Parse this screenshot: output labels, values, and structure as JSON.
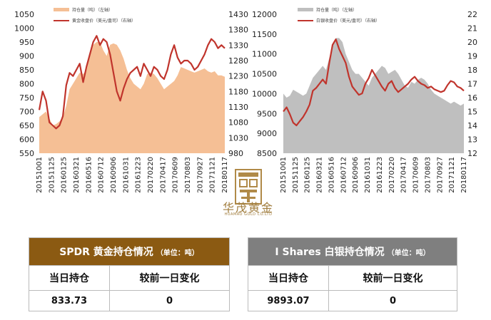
{
  "chart_data": [
    {
      "type": "area+line",
      "legend": [
        "持仓量（吨）（左轴）",
        "黄金收盘价（美元/盎司）（右轴）"
      ],
      "x_ticks": [
        "20151001",
        "20151125",
        "20160125",
        "20160321",
        "20160516",
        "20160712",
        "20160906",
        "20161031",
        "20161223",
        "20170220",
        "20170417",
        "20170609",
        "20170803",
        "20170927",
        "20171121",
        "20180117"
      ],
      "left_axis": {
        "ticks": [
          550,
          600,
          650,
          700,
          750,
          800,
          850,
          900,
          950,
          1000,
          1050
        ],
        "range": [
          550,
          1050
        ]
      },
      "right_axis": {
        "ticks": [
          980,
          1030,
          1080,
          1130,
          1180,
          1230,
          1280,
          1330,
          1380,
          1430
        ],
        "range": [
          980,
          1430
        ]
      },
      "series": [
        {
          "name": "持仓量（吨）（左轴）",
          "axis": "left",
          "color": "#f5bf95",
          "values": [
            680,
            690,
            700,
            675,
            650,
            655,
            665,
            680,
            720,
            780,
            800,
            820,
            840,
            835,
            850,
            900,
            940,
            950,
            950,
            920,
            900,
            940,
            945,
            940,
            920,
            890,
            850,
            820,
            800,
            790,
            780,
            800,
            835,
            840,
            835,
            820,
            800,
            780,
            790,
            800,
            810,
            830,
            860,
            855,
            850,
            845,
            840,
            845,
            850,
            855,
            845,
            840,
            845,
            830,
            830,
            825
          ]
        },
        {
          "name": "黄金收盘价（美元/盎司）（右轴）",
          "axis": "right",
          "color": "#c0342c",
          "values": [
            1120,
            1180,
            1150,
            1080,
            1070,
            1060,
            1070,
            1100,
            1200,
            1240,
            1230,
            1250,
            1270,
            1210,
            1260,
            1300,
            1340,
            1360,
            1330,
            1350,
            1340,
            1300,
            1240,
            1180,
            1150,
            1190,
            1220,
            1240,
            1250,
            1260,
            1230,
            1270,
            1250,
            1230,
            1260,
            1250,
            1230,
            1220,
            1250,
            1300,
            1330,
            1290,
            1270,
            1280,
            1280,
            1270,
            1250,
            1260,
            1280,
            1300,
            1330,
            1350,
            1340,
            1320,
            1330,
            1320
          ]
        }
      ]
    },
    {
      "type": "area+line",
      "legend": [
        "持仓量（吨）（左轴）",
        "白银收盘价（美元/盎司）（右轴）"
      ],
      "x_ticks": [
        "20151001",
        "20151125",
        "20160125",
        "20160321",
        "20160516",
        "20160712",
        "20160906",
        "20161031",
        "20161223",
        "20170220",
        "20170417",
        "20170609",
        "20170803",
        "20170927",
        "20171121",
        "20180117"
      ],
      "left_axis": {
        "ticks": [
          8500,
          9000,
          9500,
          10000,
          10500,
          11000,
          11500,
          12000
        ],
        "range": [
          8500,
          12000
        ]
      },
      "right_axis": {
        "ticks": [
          12,
          13,
          14,
          15,
          16,
          17,
          18,
          19,
          20,
          21,
          22
        ],
        "range": [
          12,
          22
        ]
      },
      "series": [
        {
          "name": "持仓量（吨）（左轴）",
          "axis": "left",
          "color": "#bfbfbf",
          "values": [
            10000,
            9900,
            9950,
            10100,
            10050,
            10000,
            9950,
            10000,
            10200,
            10400,
            10500,
            10600,
            10700,
            10600,
            10900,
            11200,
            11400,
            11400,
            11300,
            11000,
            10800,
            10600,
            10500,
            10500,
            10400,
            10300,
            10200,
            10400,
            10500,
            10600,
            10700,
            10650,
            10500,
            10550,
            10600,
            10500,
            10350,
            10200,
            10150,
            10300,
            10250,
            10350,
            10400,
            10350,
            10250,
            10100,
            10000,
            9950,
            9900,
            9850,
            9800,
            9750,
            9800,
            9750,
            9700,
            9750
          ]
        },
        {
          "name": "白银收盘价（美元/盎司）（右轴）",
          "axis": "right",
          "color": "#c0342c",
          "values": [
            15.0,
            15.3,
            14.8,
            14.2,
            14.0,
            14.3,
            14.6,
            15.0,
            15.5,
            16.5,
            16.7,
            17.0,
            17.3,
            17.0,
            18.5,
            19.8,
            20.2,
            19.5,
            19.0,
            18.5,
            17.5,
            16.8,
            16.5,
            16.2,
            16.3,
            17.0,
            17.4,
            18.0,
            17.6,
            17.2,
            16.8,
            16.5,
            17.0,
            17.2,
            16.7,
            16.4,
            16.6,
            16.8,
            17.0,
            17.3,
            17.5,
            17.2,
            17.0,
            16.9,
            16.7,
            16.8,
            16.6,
            16.5,
            16.4,
            16.5,
            16.9,
            17.2,
            17.1,
            16.8,
            16.7,
            16.5
          ]
        }
      ]
    }
  ],
  "logo": {
    "name_cn": "华茂黄金",
    "name_en": "HUAMAO GOLD CO.LTD"
  },
  "gold_table": {
    "title": "SPDR 黄金持仓情况",
    "unit": "（单位：吨）",
    "col1_label": "当日持仓",
    "col2_label": "较前一日变化",
    "holding": "833.73",
    "change": "0",
    "header_color": "#8b5a12"
  },
  "silver_table": {
    "title": "I Shares 白银持仓情况",
    "unit": "（单位：吨）",
    "col1_label": "当日持仓",
    "col2_label": "较前一日变化",
    "holding": "9893.07",
    "change": "0",
    "header_color": "#7f7f7f"
  }
}
